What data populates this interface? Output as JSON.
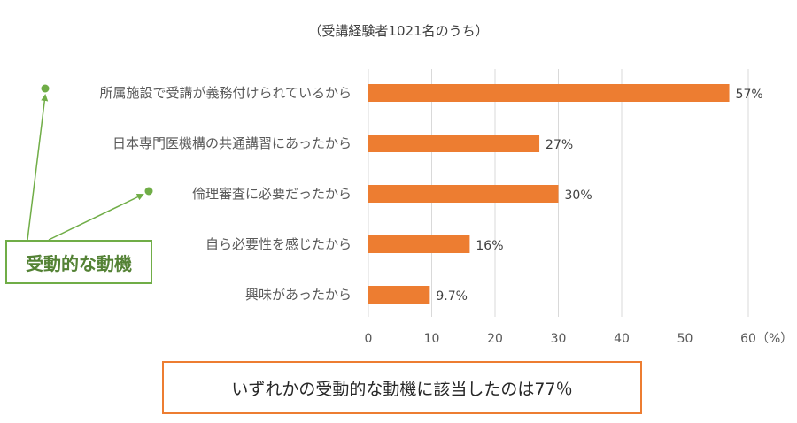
{
  "chart_data": {
    "type": "bar",
    "orientation": "horizontal",
    "subtitle": "（受講経験者1021名のうち）",
    "categories": [
      "所属施設で受講が義務付けられているから",
      "日本専門医機構の共通講習にあったから",
      "倫理審査に必要だったから",
      "自ら必要性を感じたから",
      "興味があったから"
    ],
    "values": [
      57,
      27,
      30,
      16,
      9.7
    ],
    "value_labels": [
      "57%",
      "27%",
      "30%",
      "16%",
      "9.7%"
    ],
    "xlim": [
      0,
      60
    ],
    "xticks": [
      0,
      10,
      20,
      30,
      40,
      50,
      60
    ],
    "x_unit": "（%）",
    "grid": "vertical",
    "bar_color": "#ED7D31"
  },
  "annotations": {
    "motive_label": "受動的な動機",
    "motive_color": "#70AD47",
    "summary_text": "いずれかの受動的な動機に該当したのは77％",
    "summary_border_color": "#ED7D31"
  }
}
